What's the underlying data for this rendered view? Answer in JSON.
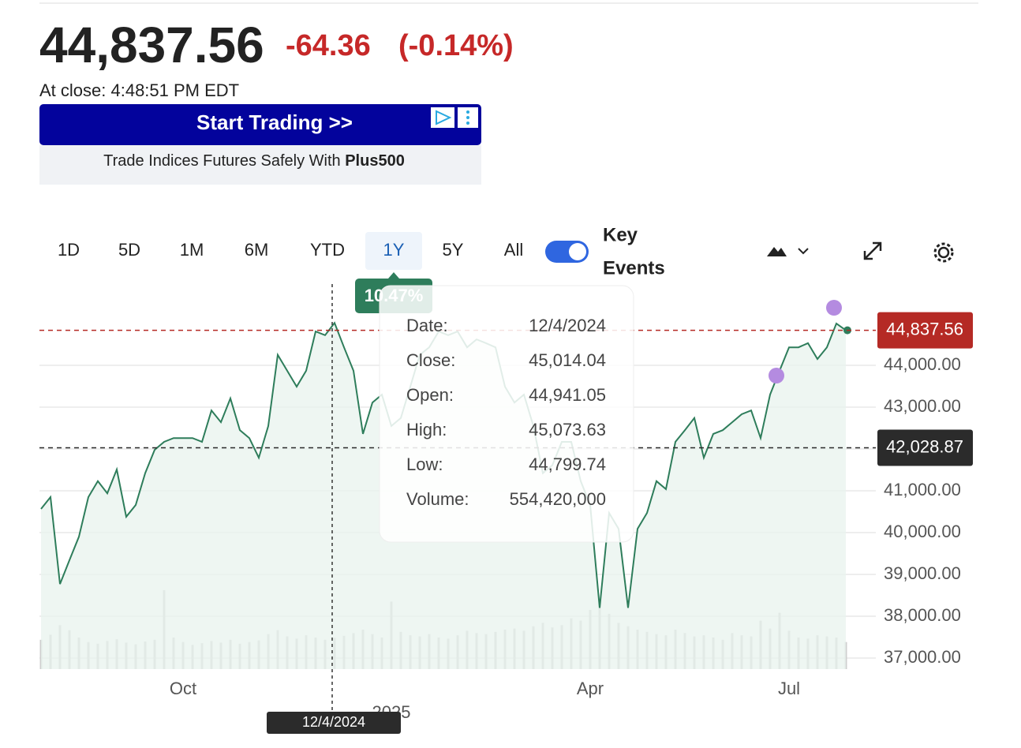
{
  "header": {
    "price": "44,837.56",
    "change": "-64.36",
    "change_pct": "(-0.14%)",
    "close_time": "At close: 4:48:51 PM EDT"
  },
  "ad": {
    "headline": "Start Trading >>",
    "text": "Trade Indices Futures Safely With ",
    "brand": "Plus500"
  },
  "toolbar": {
    "ranges": [
      "1D",
      "5D",
      "1M",
      "6M",
      "YTD",
      "1Y",
      "5Y",
      "All"
    ],
    "active": "1Y",
    "key_events_lines": [
      "Key",
      "Events"
    ],
    "key_events_on": true
  },
  "return_badge": "10.47%",
  "tooltip": {
    "rows": [
      [
        "Date:",
        "12/4/2024"
      ],
      [
        "Close:",
        "45,014.04"
      ],
      [
        "Open:",
        "44,941.05"
      ],
      [
        "High:",
        "45,073.63"
      ],
      [
        "Low:",
        "44,799.74"
      ],
      [
        "Volume:",
        "554,420,000"
      ]
    ]
  },
  "crosshair_date": "12/4/2024",
  "chart_data": {
    "type": "line",
    "categories": [
      null,
      null,
      null,
      null,
      null,
      null,
      null,
      null,
      null,
      null,
      null,
      null,
      null,
      null,
      null,
      "Oct",
      null,
      null,
      null,
      null,
      null,
      null,
      null,
      null,
      null,
      null,
      null,
      null,
      null,
      null,
      null,
      null,
      null,
      null,
      null,
      null,
      null,
      "2025",
      null,
      null,
      null,
      null,
      null,
      null,
      null,
      null,
      null,
      null,
      null,
      null,
      null,
      null,
      null,
      null,
      null,
      null,
      null,
      null,
      "Apr",
      null,
      null,
      null,
      null,
      null,
      null,
      null,
      null,
      null,
      null,
      null,
      null,
      null,
      null,
      null,
      null,
      null,
      null,
      null,
      null,
      "Jul",
      null,
      null,
      null,
      null,
      null,
      null
    ],
    "series": [
      {
        "color": "#2e7d5b",
        "values": [
          40566,
          40850,
          38770,
          39340,
          39900,
          40850,
          41230,
          40940,
          41510,
          40380,
          40660,
          41420,
          41980,
          42170,
          42260,
          42260,
          42260,
          42170,
          42920,
          42640,
          43210,
          42450,
          42260,
          41790,
          42550,
          44250,
          43870,
          43490,
          43870,
          44810,
          44720,
          45014.04,
          44430,
          43870,
          42360,
          43110,
          43300,
          42550,
          42740,
          43490,
          44250,
          44430,
          44810,
          44720,
          44810,
          44430,
          44620,
          44530,
          44430,
          43490,
          43110,
          43300,
          42550,
          41420,
          41610,
          42170,
          42170,
          41230,
          40660,
          38200,
          40470,
          40090,
          38200,
          40090,
          40470,
          41230,
          41040,
          42170,
          42450,
          42740,
          41790,
          42360,
          42450,
          42640,
          42830,
          42920,
          42260,
          43300,
          43870,
          44430,
          44430,
          44530,
          44150,
          44430,
          45000,
          44837.56
        ]
      }
    ],
    "volume": [
      520000000,
      610000000,
      780000000,
      690000000,
      560000000,
      480000000,
      450000000,
      500000000,
      530000000,
      470000000,
      440000000,
      490000000,
      520000000,
      1400000000,
      560000000,
      480000000,
      430000000,
      460000000,
      500000000,
      470000000,
      520000000,
      450000000,
      480000000,
      510000000,
      620000000,
      690000000,
      580000000,
      540000000,
      600000000,
      560000000,
      520000000,
      554420000,
      590000000,
      640000000,
      700000000,
      620000000,
      560000000,
      1200000000,
      660000000,
      600000000,
      580000000,
      620000000,
      560000000,
      540000000,
      600000000,
      680000000,
      640000000,
      620000000,
      660000000,
      700000000,
      720000000,
      680000000,
      760000000,
      820000000,
      740000000,
      780000000,
      900000000,
      860000000,
      1050000000,
      1150000000,
      980000000,
      820000000,
      760000000,
      700000000,
      660000000,
      620000000,
      600000000,
      700000000,
      640000000,
      580000000,
      600000000,
      560000000,
      520000000,
      640000000,
      600000000,
      580000000,
      860000000,
      720000000,
      1000000000,
      680000000,
      560000000,
      540000000,
      600000000,
      580000000,
      560000000,
      480000000
    ],
    "volume_color": "#cfcfcf",
    "area_color": "#e8f3ee",
    "ylim": [
      36736,
      45566
    ],
    "yticks": [
      {
        "value": 37000,
        "label": "37,000.00"
      },
      {
        "value": 38000,
        "label": "38,000.00"
      },
      {
        "value": 39000,
        "label": "39,000.00"
      },
      {
        "value": 40000,
        "label": "40,000.00"
      },
      {
        "value": 41000,
        "label": "41,000.00"
      },
      {
        "value": 42000,
        "label": "42,000.00"
      },
      {
        "value": 43000,
        "label": "43,000.00"
      },
      {
        "value": 44000,
        "label": "44,000.00"
      }
    ],
    "grid": true,
    "price_line": {
      "value": 44837.56,
      "label": "44,837.56",
      "color": "#b52a25"
    },
    "crosshair_line": {
      "value": 42028.87,
      "label": "42,028.87",
      "color": "#2b2b2b"
    }
  }
}
